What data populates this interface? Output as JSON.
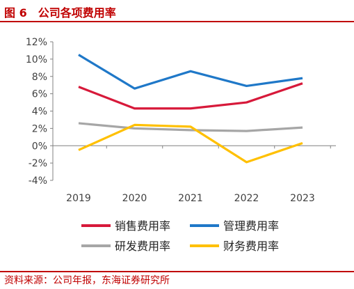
{
  "figure": {
    "title": "图 6　公司各项费用率",
    "source": "资料来源：公司年报，东海证券研究所",
    "accent_color": "#C00000"
  },
  "chart_data": {
    "type": "line",
    "x": [
      "2019",
      "2020",
      "2021",
      "2022",
      "2023"
    ],
    "ylim": [
      -4,
      12
    ],
    "yticks": [
      -4,
      -2,
      0,
      2,
      4,
      6,
      8,
      10,
      12
    ],
    "ytick_labels": [
      "-4%",
      "-2%",
      "0%",
      "2%",
      "4%",
      "6%",
      "8%",
      "10%",
      "12%"
    ],
    "ylabel": "",
    "xlabel": "",
    "grid": false,
    "legend_position": "bottom",
    "series": [
      {
        "name": "销售费用率",
        "color": "#D7193A",
        "values": [
          6.8,
          4.3,
          4.3,
          5.0,
          7.2
        ]
      },
      {
        "name": "管理费用率",
        "color": "#1F78C8",
        "values": [
          10.5,
          6.6,
          8.6,
          6.9,
          7.8
        ]
      },
      {
        "name": "研发费用率",
        "color": "#A6A6A6",
        "values": [
          2.6,
          2.0,
          1.8,
          1.7,
          2.1
        ]
      },
      {
        "name": "财务费用率",
        "color": "#FFC000",
        "values": [
          -0.5,
          2.4,
          2.2,
          -1.9,
          0.3
        ]
      }
    ]
  }
}
